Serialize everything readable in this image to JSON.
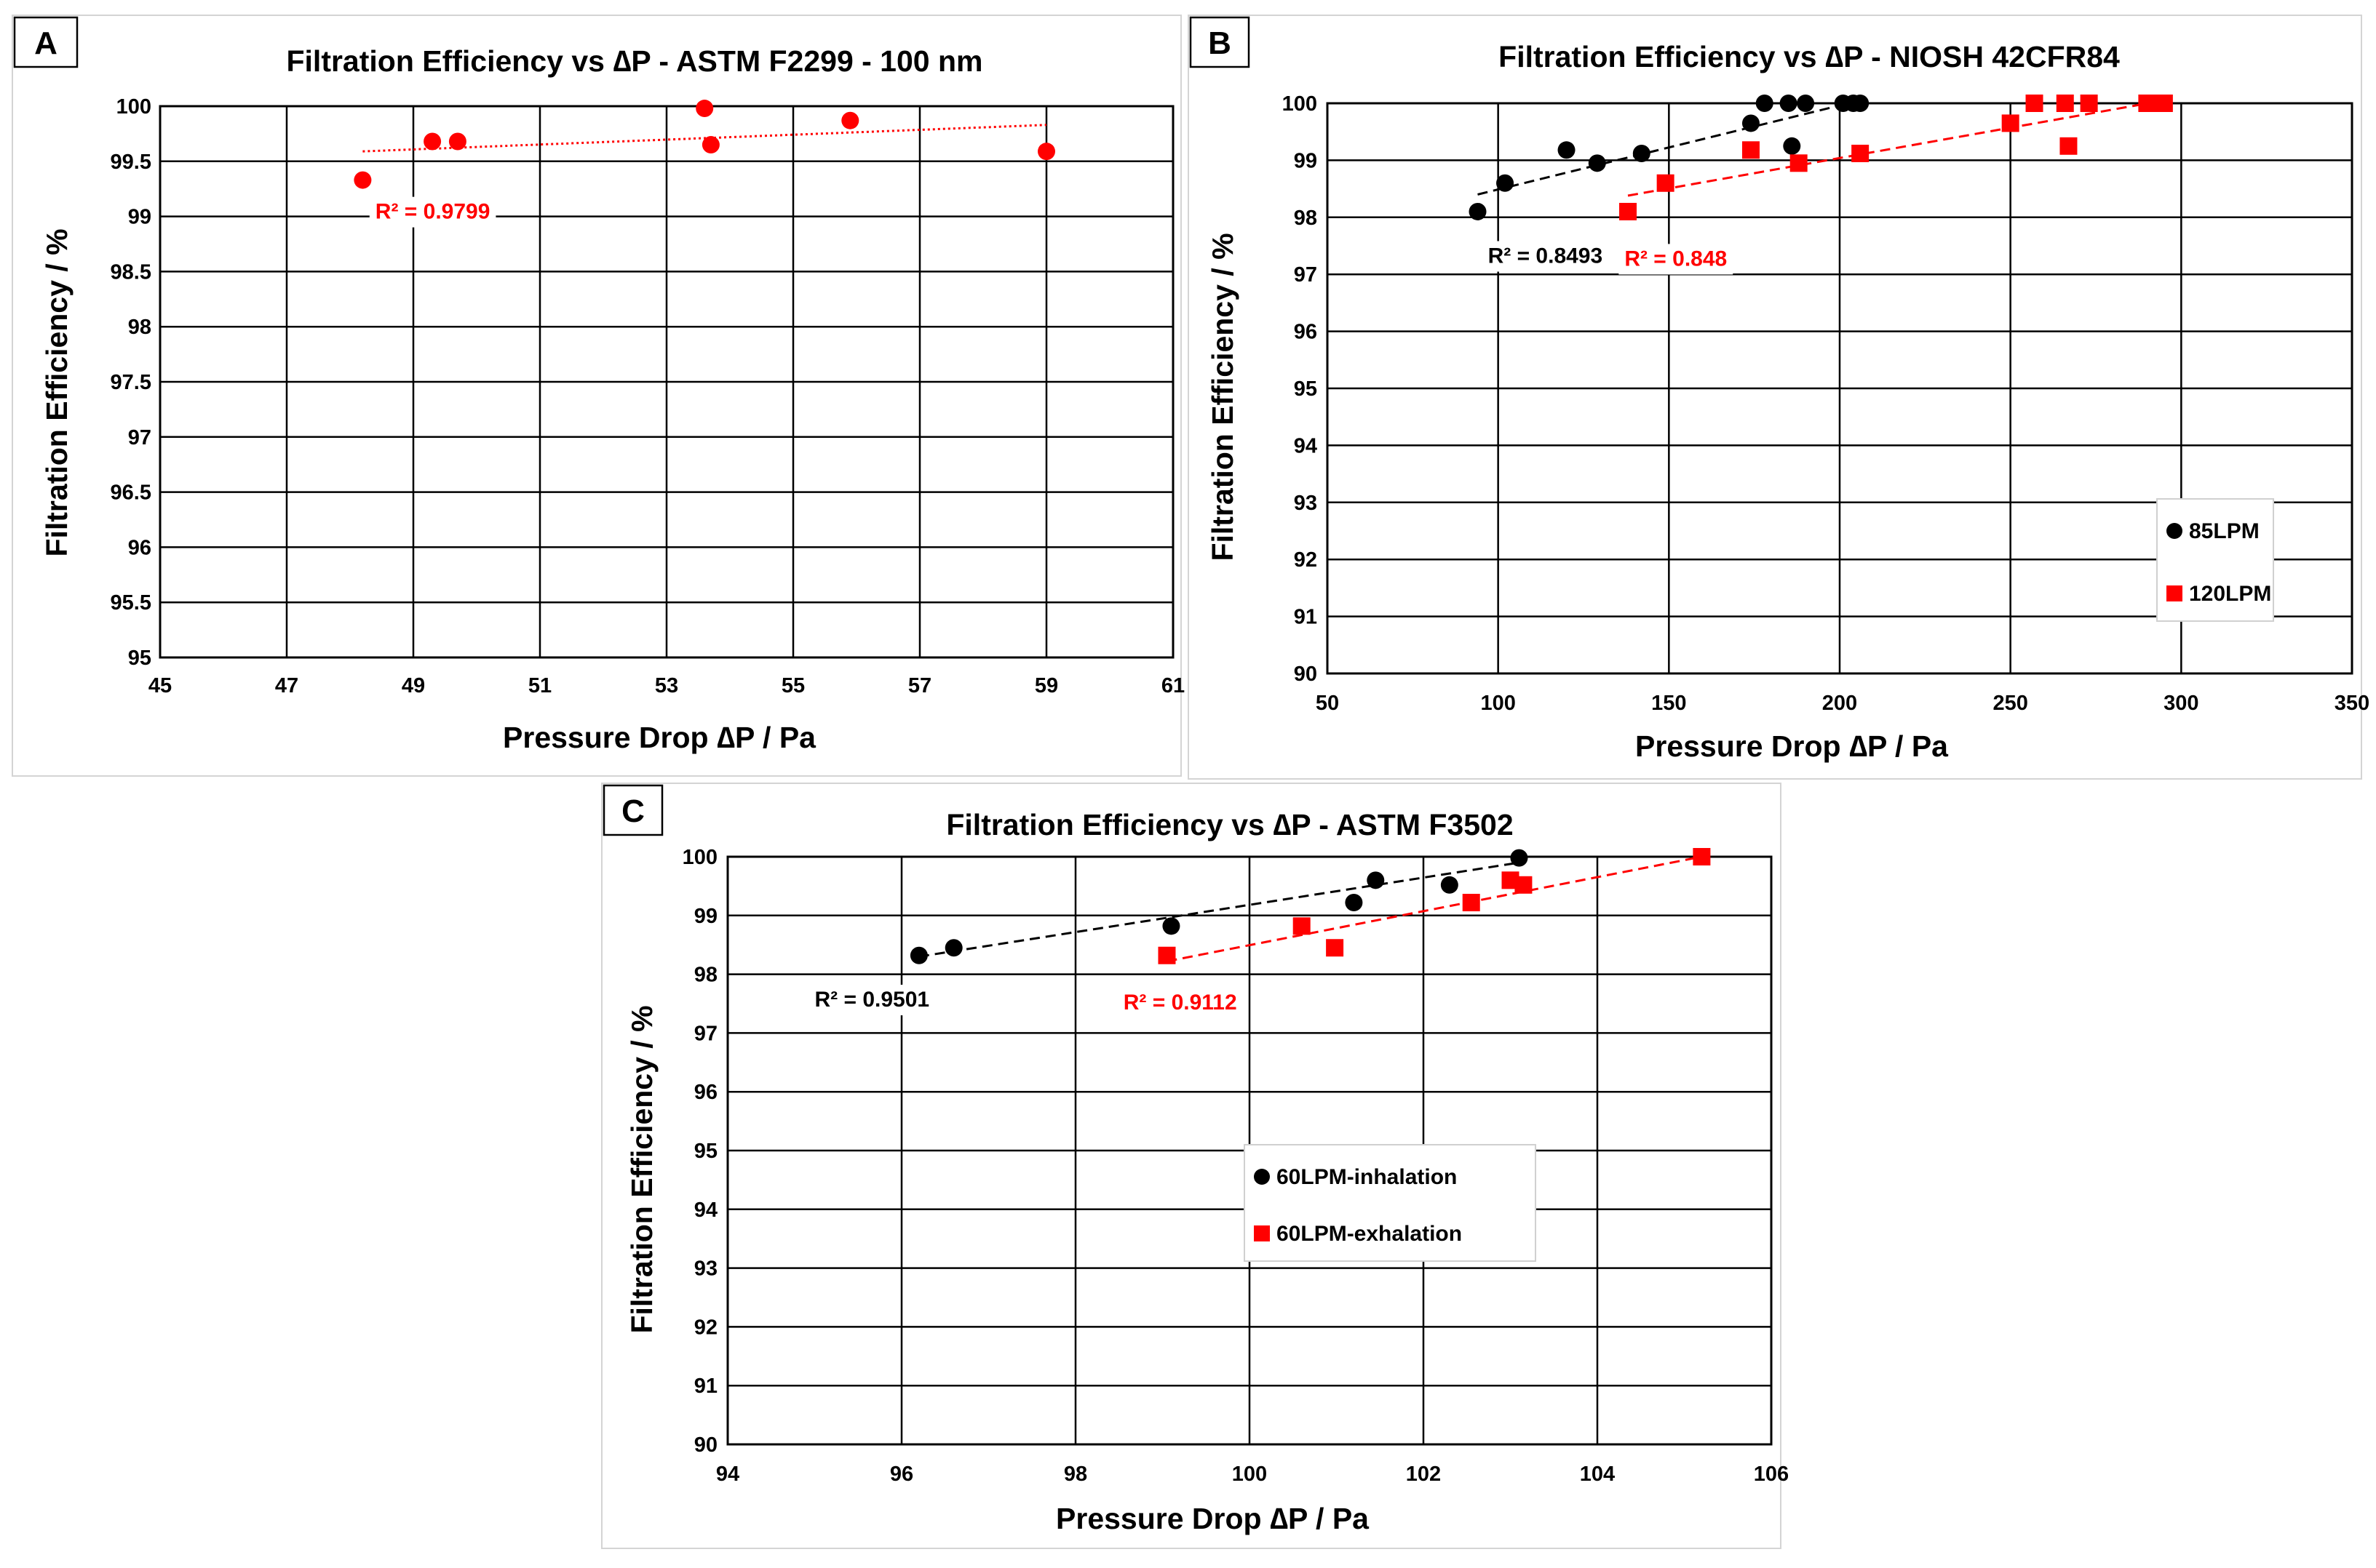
{
  "figure": {
    "panels": [
      {
        "id": "A",
        "letter": "A",
        "title": "Filtration Efficiency vs ∆P - ASTM F2299 - 100 nm",
        "xlabel": "Pressure Drop ∆P / Pa",
        "ylabel": "Filtration Efficiency / %"
      },
      {
        "id": "B",
        "letter": "B",
        "title": "Filtration Efficiency vs ∆P - NIOSH 42CFR84",
        "xlabel": "Pressure Drop ∆P / Pa",
        "ylabel": "Filtration Efficiency / %"
      },
      {
        "id": "C",
        "letter": "C",
        "title": "Filtration Efficiency vs ∆P - ASTM F3502",
        "xlabel": "Pressure Drop ∆P / Pa",
        "ylabel": "Filtration Efficiency / %"
      }
    ]
  },
  "chart_data": [
    {
      "id": "A",
      "type": "scatter",
      "title": "Filtration Efficiency vs ∆P - ASTM F2299 - 100 nm",
      "xlabel": "Pressure Drop ∆P / Pa",
      "ylabel": "Filtration Efficiency / %",
      "xlim": [
        45,
        61
      ],
      "ylim": [
        95,
        100
      ],
      "xticks": [
        45,
        47,
        49,
        51,
        53,
        55,
        57,
        59,
        61
      ],
      "yticks": [
        95,
        95.5,
        96,
        96.5,
        97,
        97.5,
        98,
        98.5,
        99,
        99.5,
        100
      ],
      "grid": true,
      "legend": null,
      "series": [
        {
          "name": "",
          "color": "#ff0000",
          "marker": "circle",
          "points": [
            [
              48.2,
              99.33
            ],
            [
              49.3,
              99.68
            ],
            [
              49.7,
              99.68
            ],
            [
              53.6,
              99.98
            ],
            [
              53.7,
              99.65
            ],
            [
              55.9,
              99.87
            ],
            [
              59.0,
              99.59
            ]
          ],
          "trendline": {
            "style": "dotted",
            "from": [
              48.2,
              99.59
            ],
            "to": [
              59.0,
              99.83
            ]
          },
          "r2_label": "R² = 0.9799",
          "r2_at": [
            48.4,
            98.98
          ]
        }
      ]
    },
    {
      "id": "B",
      "type": "scatter",
      "title": "Filtration Efficiency vs ∆P - NIOSH 42CFR84",
      "xlabel": "Pressure Drop ∆P / Pa",
      "ylabel": "Filtration Efficiency / %",
      "xlim": [
        50,
        350
      ],
      "ylim": [
        90,
        100
      ],
      "xticks": [
        50,
        100,
        150,
        200,
        250,
        300,
        350
      ],
      "yticks": [
        90,
        91,
        92,
        93,
        94,
        95,
        96,
        97,
        98,
        99,
        100
      ],
      "grid": true,
      "legend": "lower-right",
      "series": [
        {
          "name": "85LPM",
          "color": "#000000",
          "marker": "circle",
          "points": [
            [
              94,
              98.1
            ],
            [
              102,
              98.6
            ],
            [
              120,
              99.18
            ],
            [
              129,
              98.95
            ],
            [
              142,
              99.12
            ],
            [
              174,
              99.65
            ],
            [
              178,
              100
            ],
            [
              185,
              100
            ],
            [
              186,
              99.25
            ],
            [
              190,
              100
            ],
            [
              201,
              100
            ],
            [
              204,
              100
            ],
            [
              206,
              100
            ]
          ],
          "trendline": {
            "style": "dashed",
            "from": [
              94,
              98.4
            ],
            "to": [
              206,
              100.05
            ]
          },
          "r2_label": "R² = 0.8493",
          "r2_at": [
            97,
            97.2
          ]
        },
        {
          "name": "120LPM",
          "color": "#ff0000",
          "marker": "square",
          "points": [
            [
              138,
              98.1
            ],
            [
              149,
              98.6
            ],
            [
              174,
              99.18
            ],
            [
              188,
              98.95
            ],
            [
              206,
              99.12
            ],
            [
              250,
              99.65
            ],
            [
              257,
              100
            ],
            [
              266,
              100
            ],
            [
              267,
              99.25
            ],
            [
              273,
              100
            ],
            [
              290,
              100
            ],
            [
              293,
              100
            ],
            [
              295,
              100
            ]
          ],
          "trendline": {
            "style": "dashed",
            "from": [
              138,
              98.38
            ],
            "to": [
              295,
              100.05
            ]
          },
          "r2_label": "R² = 0.848",
          "r2_at": [
            137,
            97.15
          ]
        }
      ]
    },
    {
      "id": "C",
      "type": "scatter",
      "title": "Filtration Efficiency vs ∆P - ASTM F3502",
      "xlabel": "Pressure Drop ∆P / Pa",
      "ylabel": "Filtration Efficiency / %",
      "xlim": [
        94,
        106
      ],
      "ylim": [
        90,
        100
      ],
      "xticks": [
        94,
        96,
        98,
        100,
        102,
        104,
        106
      ],
      "yticks": [
        90,
        91,
        92,
        93,
        94,
        95,
        96,
        97,
        98,
        99,
        100
      ],
      "grid": true,
      "legend": "center",
      "series": [
        {
          "name": "60LPM-inhalation",
          "color": "#000000",
          "marker": "circle",
          "points": [
            [
              96.2,
              98.32
            ],
            [
              96.6,
              98.45
            ],
            [
              99.1,
              98.82
            ],
            [
              101.2,
              99.22
            ],
            [
              101.45,
              99.6
            ],
            [
              102.3,
              99.52
            ],
            [
              103.1,
              99.98
            ]
          ],
          "trendline": {
            "style": "dashed",
            "from": [
              96.2,
              98.3
            ],
            "to": [
              103.1,
              99.9
            ]
          },
          "r2_label": "R² = 0.9501",
          "r2_at": [
            95.0,
            97.45
          ]
        },
        {
          "name": "60LPM-exhalation",
          "color": "#ff0000",
          "marker": "square",
          "points": [
            [
              99.05,
              98.32
            ],
            [
              100.6,
              98.82
            ],
            [
              100.98,
              98.45
            ],
            [
              102.55,
              99.22
            ],
            [
              103.0,
              99.6
            ],
            [
              103.15,
              99.52
            ],
            [
              105.2,
              100.0
            ]
          ],
          "trendline": {
            "style": "dashed",
            "from": [
              99.05,
              98.22
            ],
            "to": [
              105.2,
              100.0
            ]
          },
          "r2_label": "R² = 0.9112",
          "r2_at": [
            98.55,
            97.4
          ]
        }
      ]
    }
  ]
}
